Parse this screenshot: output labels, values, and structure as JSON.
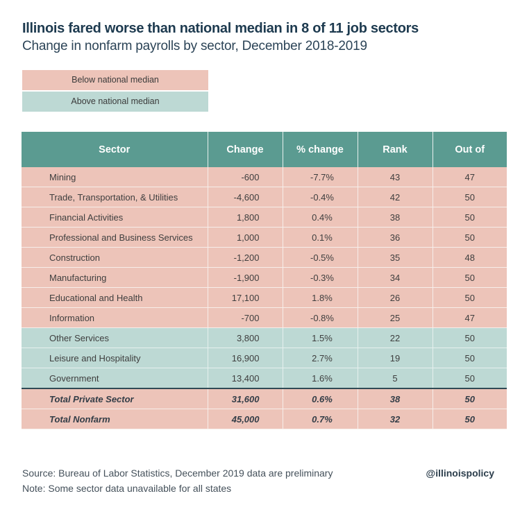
{
  "colors": {
    "below": "#edc4b9",
    "above": "#bdd9d4",
    "header": "#5b9b91",
    "title": "#1d3a4f"
  },
  "chart_data": {
    "type": "table",
    "title": "Illinois fared worse than national median in 8 of 11 job sectors",
    "subtitle": "Change in nonfarm payrolls by sector, December 2018-2019",
    "legend": [
      {
        "label": "Below national median",
        "status": "below"
      },
      {
        "label": "Above national median",
        "status": "above"
      }
    ],
    "columns": [
      "Sector",
      "Change",
      "% change",
      "Rank",
      "Out of"
    ],
    "rows": [
      {
        "sector": "Mining",
        "change": "-600",
        "pct": "-7.7%",
        "rank": "43",
        "out_of": "47",
        "status": "below"
      },
      {
        "sector": "Trade, Transportation, & Utilities",
        "change": "-4,600",
        "pct": "-0.4%",
        "rank": "42",
        "out_of": "50",
        "status": "below"
      },
      {
        "sector": "Financial Activities",
        "change": "1,800",
        "pct": "0.4%",
        "rank": "38",
        "out_of": "50",
        "status": "below"
      },
      {
        "sector": "Professional and Business Services",
        "change": "1,000",
        "pct": "0.1%",
        "rank": "36",
        "out_of": "50",
        "status": "below"
      },
      {
        "sector": "Construction",
        "change": "-1,200",
        "pct": "-0.5%",
        "rank": "35",
        "out_of": "48",
        "status": "below"
      },
      {
        "sector": "Manufacturing",
        "change": "-1,900",
        "pct": "-0.3%",
        "rank": "34",
        "out_of": "50",
        "status": "below"
      },
      {
        "sector": "Educational and Health",
        "change": "17,100",
        "pct": "1.8%",
        "rank": "26",
        "out_of": "50",
        "status": "below"
      },
      {
        "sector": "Information",
        "change": "-700",
        "pct": "-0.8%",
        "rank": "25",
        "out_of": "47",
        "status": "below"
      },
      {
        "sector": "Other Services",
        "change": "3,800",
        "pct": "1.5%",
        "rank": "22",
        "out_of": "50",
        "status": "above"
      },
      {
        "sector": "Leisure and Hospitality",
        "change": "16,900",
        "pct": "2.7%",
        "rank": "19",
        "out_of": "50",
        "status": "above"
      },
      {
        "sector": "Government",
        "change": "13,400",
        "pct": "1.6%",
        "rank": "5",
        "out_of": "50",
        "status": "above"
      }
    ],
    "totals": [
      {
        "sector": "Total Private Sector",
        "change": "31,600",
        "pct": "0.6%",
        "rank": "38",
        "out_of": "50",
        "status": "below"
      },
      {
        "sector": "Total Nonfarm",
        "change": "45,000",
        "pct": "0.7%",
        "rank": "32",
        "out_of": "50",
        "status": "below"
      }
    ]
  },
  "footer": {
    "source": "Source: Bureau of Labor Statistics, December 2019 data are preliminary",
    "note": "Note: Some sector data unavailable for all states",
    "handle": "@illinoispolicy"
  }
}
